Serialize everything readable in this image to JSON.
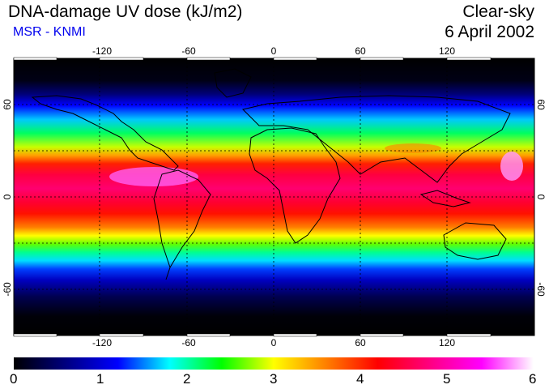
{
  "header": {
    "title": "DNA-damage UV dose (kJ/m2)",
    "subtitle": "MSR - KNMI",
    "condition": "Clear-sky",
    "date": "6 April 2002"
  },
  "map": {
    "projection": "equirectangular",
    "lon_range": [
      -180,
      180
    ],
    "lat_range": [
      -90,
      90
    ],
    "lon_ticks": [
      "-120",
      "-60",
      "0",
      "60",
      "120"
    ],
    "lat_ticks": [
      "60",
      "0",
      "-60"
    ],
    "gridlines": "dashed",
    "coastlines": true
  },
  "colorbar": {
    "labels": [
      "0",
      "1",
      "2",
      "3",
      "4",
      "5",
      "6"
    ],
    "colors": [
      "#000000",
      "#000080",
      "#0000ff",
      "#00ffff",
      "#00ff00",
      "#ffff00",
      "#ff8000",
      "#ff0000",
      "#ff0080",
      "#ff00ff",
      "#ffffff"
    ]
  }
}
